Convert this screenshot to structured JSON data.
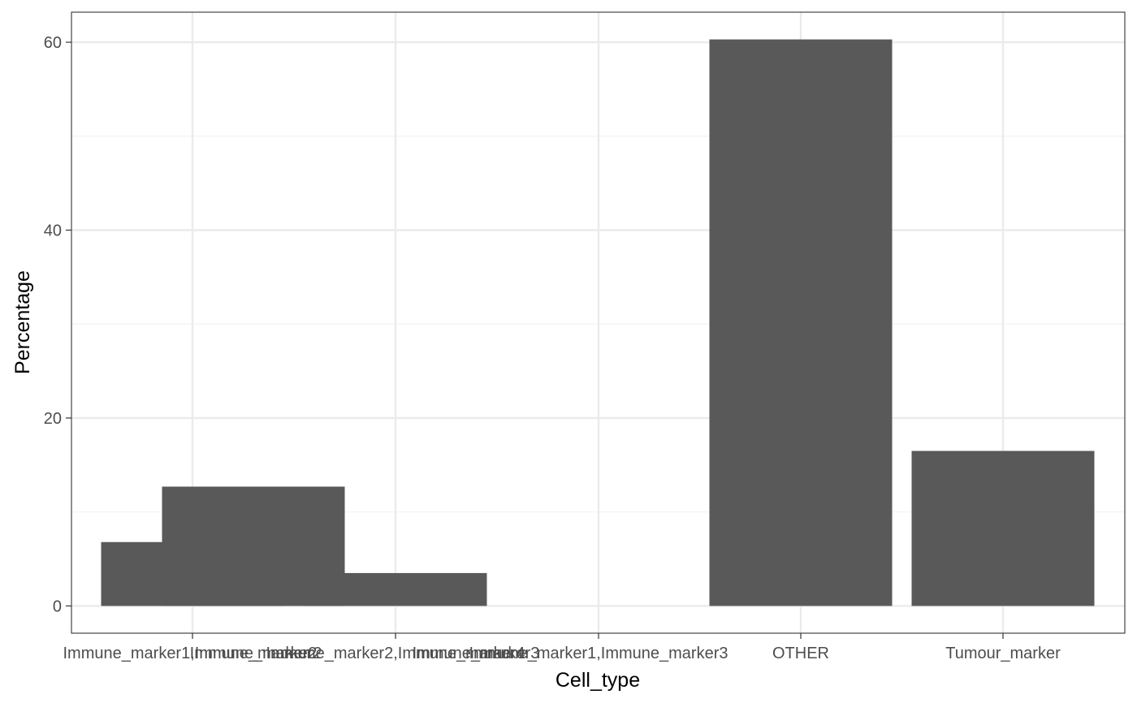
{
  "chart_data": {
    "type": "bar",
    "categories": [
      "Immune_marker1,Immune_marker2",
      "Immune_marker2",
      "Immune_marker2,Immune_marker4",
      "Immune_marker3",
      "Immune_marker1,Immune_marker3",
      "OTHER",
      "Tumour_marker"
    ],
    "values": [
      6.8,
      12.7,
      3.5,
      0,
      0,
      60.3,
      16.5
    ],
    "xlabel": "Cell_type",
    "ylabel": "Percentage",
    "ylim": [
      -2.9,
      63.2
    ],
    "yticks": [
      0,
      20,
      40,
      60
    ],
    "grid": true,
    "legend": "none",
    "colors": {
      "bar": "#595959",
      "panel_border": "#333333",
      "grid_major": "#ebebeb",
      "grid_minor": "#f2f2f2",
      "tick_text": "#4d4d4d",
      "axis_title": "#000000"
    }
  }
}
